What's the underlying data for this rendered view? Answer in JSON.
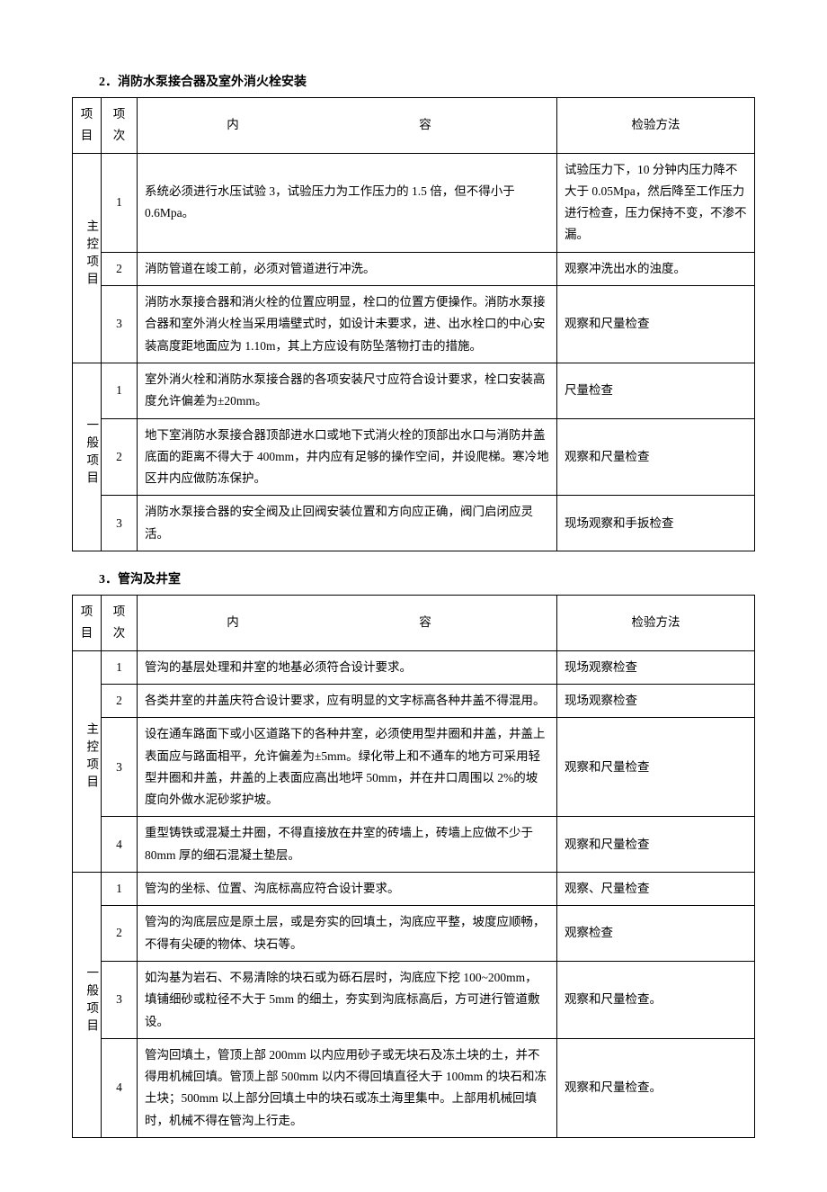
{
  "section2": {
    "title": "2．消防水泵接合器及室外消火栓安装",
    "headers": {
      "cat": "项目",
      "idx": "项次",
      "content": "内　　　容",
      "method": "检验方法"
    },
    "cat1": "主控项目",
    "cat2": "一般项目",
    "rows": {
      "r1": {
        "idx": "1",
        "content": "系统必须进行水压试验 3，试验压力为工作压力的 1.5 倍，但不得小于 0.6Mpa。",
        "method": "试验压力下，10 分钟内压力降不大于 0.05Mpa，然后降至工作压力进行检查，压力保持不变，不渗不漏。"
      },
      "r2": {
        "idx": "2",
        "content": "消防管道在竣工前，必须对管道进行冲洗。",
        "method": "观察冲洗出水的浊度。"
      },
      "r3": {
        "idx": "3",
        "content": "消防水泵接合器和消火栓的位置应明显，栓口的位置方便操作。消防水泵接合器和室外消火栓当采用墙壁式时，如设计未要求，进、出水栓口的中心安装高度距地面应为 1.10m，其上方应设有防坠落物打击的措施。",
        "method": "观察和尺量检查"
      },
      "r4": {
        "idx": "1",
        "content": "室外消火栓和消防水泵接合器的各项安装尺寸应符合设计要求，栓口安装高度允许偏差为±20mm。",
        "method": "尺量检查"
      },
      "r5": {
        "idx": "2",
        "content": "地下室消防水泵接合器顶部进水口或地下式消火栓的顶部出水口与消防井盖底面的距离不得大于 400mm，井内应有足够的操作空间，并设爬梯。寒冷地区井内应做防冻保护。",
        "method": "观察和尺量检查"
      },
      "r6": {
        "idx": "3",
        "content": "消防水泵接合器的安全阀及止回阀安装位置和方向应正确，阀门启闭应灵活。",
        "method": "现场观察和手扳检查"
      }
    }
  },
  "section3": {
    "title": "3．管沟及井室",
    "headers": {
      "cat": "项目",
      "idx": "项次",
      "content": "内　　　容",
      "method": "检验方法"
    },
    "cat1": "主控项目",
    "cat2": "一般项目",
    "rows": {
      "r1": {
        "idx": "1",
        "content": "管沟的基层处理和井室的地基必须符合设计要求。",
        "method": "现场观察检查"
      },
      "r2": {
        "idx": "2",
        "content": "各类井室的井盖庆符合设计要求，应有明显的文字标高各种井盖不得混用。",
        "method": "现场观察检查"
      },
      "r3": {
        "idx": "3",
        "content": "设在通车路面下或小区道路下的各种井室，必须使用型井圈和井盖，井盖上表面应与路面相平，允许偏差为±5mm。绿化带上和不通车的地方可采用轻型井圈和井盖，井盖的上表面应高出地坪 50mm，并在井口周围以 2%的坡度向外做水泥砂浆护坡。",
        "method": "观察和尺量检查"
      },
      "r4": {
        "idx": "4",
        "content": "重型铸铁或混凝土井圈，不得直接放在井室的砖墙上，砖墙上应做不少于 80mm 厚的细石混凝土垫层。",
        "method": "观察和尺量检查"
      },
      "r5": {
        "idx": "1",
        "content": "管沟的坐标、位置、沟底标高应符合设计要求。",
        "method": "观察、尺量检查"
      },
      "r6": {
        "idx": "2",
        "content": "管沟的沟底层应是原土层，或是夯实的回填土，沟底应平整，坡度应顺畅，不得有尖硬的物体、块石等。",
        "method": "观察检查"
      },
      "r7": {
        "idx": "3",
        "content": "如沟基为岩石、不易清除的块石或为砾石层时，沟底应下挖 100~200mm，填铺细砂或粒径不大于 5mm 的细土，夯实到沟底标高后，方可进行管道敷设。",
        "method": "观察和尺量检查。"
      },
      "r8": {
        "idx": "4",
        "content": "管沟回填土，管顶上部 200mm 以内应用砂子或无块石及冻土块的土，并不得用机械回填。管顶上部 500mm 以内不得回填直径大于 100mm 的块石和冻土块；500mm 以上部分回填土中的块石或冻土海里集中。上部用机械回填时，机械不得在管沟上行走。",
        "method": "观察和尺量检查。"
      }
    }
  }
}
